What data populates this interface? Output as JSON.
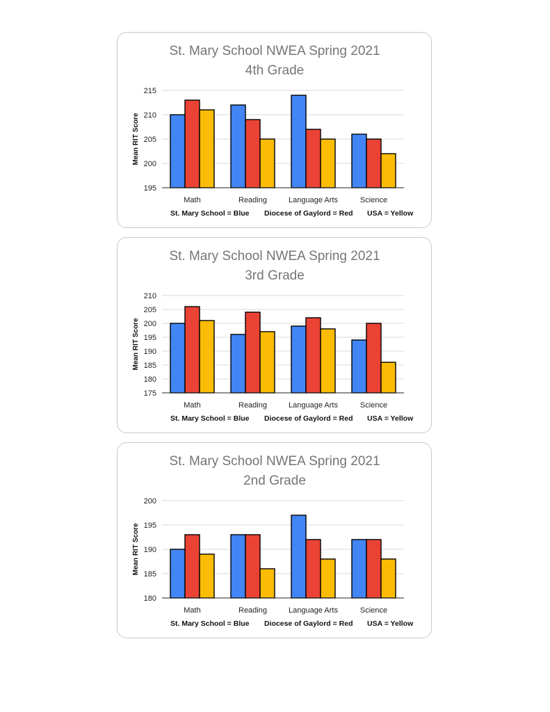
{
  "legend": [
    "St. Mary School = Blue",
    "Diocese of Gaylord = Red",
    "USA = Yellow"
  ],
  "colors": {
    "blue": "#4285f4",
    "red": "#ea4335",
    "yellow": "#fbbc05",
    "grid": "#d9d9d9",
    "axis": "#222222"
  },
  "chart_data": [
    {
      "type": "bar",
      "title": "St. Mary School NWEA Spring 2021",
      "subtitle": "4th Grade",
      "ylabel": "Mean RIT Score",
      "xlabel": "",
      "categories": [
        "Math",
        "Reading",
        "Language Arts",
        "Science"
      ],
      "ylim": [
        195,
        215
      ],
      "yticks": [
        195,
        200,
        205,
        210,
        215
      ],
      "grid": true,
      "series": [
        {
          "values": [
            210,
            212,
            214,
            206
          ],
          "color": "#4285f4"
        },
        {
          "values": [
            213,
            209,
            207,
            205
          ],
          "color": "#ea4335"
        },
        {
          "values": [
            211,
            205,
            205,
            202
          ],
          "color": "#fbbc05"
        }
      ]
    },
    {
      "type": "bar",
      "title": "St. Mary School NWEA Spring 2021",
      "subtitle": "3rd Grade",
      "ylabel": "Mean RIT Score",
      "xlabel": "",
      "categories": [
        "Math",
        "Reading",
        "Language Arts",
        "Science"
      ],
      "ylim": [
        175,
        210
      ],
      "yticks": [
        175,
        180,
        185,
        190,
        195,
        200,
        205,
        210
      ],
      "grid": true,
      "series": [
        {
          "values": [
            200,
            196,
            199,
            194
          ],
          "color": "#4285f4"
        },
        {
          "values": [
            206,
            204,
            202,
            200
          ],
          "color": "#ea4335"
        },
        {
          "values": [
            201,
            197,
            198,
            186
          ],
          "color": "#fbbc05"
        }
      ]
    },
    {
      "type": "bar",
      "title": "St. Mary School NWEA Spring 2021",
      "subtitle": "2nd Grade",
      "ylabel": "Mean RIT Score",
      "xlabel": "",
      "categories": [
        "Math",
        "Reading",
        "Language Arts",
        "Science"
      ],
      "ylim": [
        180,
        200
      ],
      "yticks": [
        180,
        185,
        190,
        195,
        200
      ],
      "grid": true,
      "series": [
        {
          "values": [
            190,
            193,
            197,
            192
          ],
          "color": "#4285f4"
        },
        {
          "values": [
            193,
            193,
            192,
            192
          ],
          "color": "#ea4335"
        },
        {
          "values": [
            189,
            186,
            188,
            188
          ],
          "color": "#fbbc05"
        }
      ]
    }
  ]
}
